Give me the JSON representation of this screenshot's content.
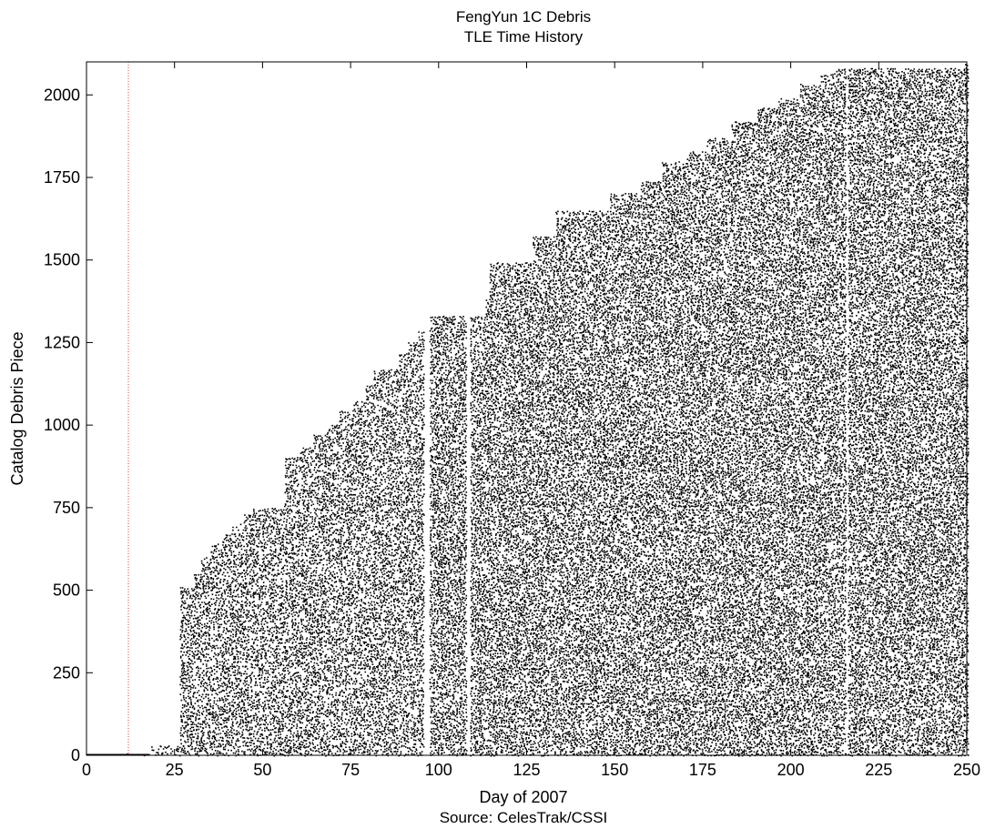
{
  "chart_data": {
    "type": "scatter",
    "title": "FengYun 1C Debris",
    "subtitle": "TLE Time History",
    "xlabel": "Day of 2007",
    "ylabel": "Catalog Debris Piece",
    "source": "Source: CelesTrak/CSSI",
    "xlim": [
      0,
      250
    ],
    "ylim": [
      0,
      2100
    ],
    "x_ticks": [
      0,
      25,
      50,
      75,
      100,
      125,
      150,
      175,
      200,
      225,
      250
    ],
    "y_ticks": [
      0,
      250,
      500,
      750,
      1000,
      1250,
      1500,
      1750,
      2000
    ],
    "grid": false,
    "event_marker": {
      "x": 11.9,
      "color": "#e04040",
      "style": "dotted"
    },
    "point_color": "#000000",
    "catalog_frontier": [
      {
        "day": 0,
        "pieces": 2
      },
      {
        "day": 18,
        "pieces": 30
      },
      {
        "day": 26,
        "pieces": 510
      },
      {
        "day": 30,
        "pieces": 550
      },
      {
        "day": 32,
        "pieces": 600
      },
      {
        "day": 35,
        "pieces": 640
      },
      {
        "day": 38,
        "pieces": 670
      },
      {
        "day": 41,
        "pieces": 700
      },
      {
        "day": 44,
        "pieces": 730
      },
      {
        "day": 47,
        "pieces": 750
      },
      {
        "day": 56,
        "pieces": 905
      },
      {
        "day": 60,
        "pieces": 935
      },
      {
        "day": 64,
        "pieces": 970
      },
      {
        "day": 68,
        "pieces": 1000
      },
      {
        "day": 71,
        "pieces": 1040
      },
      {
        "day": 75,
        "pieces": 1070
      },
      {
        "day": 79,
        "pieces": 1120
      },
      {
        "day": 81,
        "pieces": 1170
      },
      {
        "day": 88,
        "pieces": 1215
      },
      {
        "day": 91,
        "pieces": 1250
      },
      {
        "day": 94,
        "pieces": 1280
      },
      {
        "day": 96,
        "pieces": 1330
      },
      {
        "day": 113,
        "pieces": 1380
      },
      {
        "day": 114,
        "pieces": 1490
      },
      {
        "day": 126,
        "pieces": 1570
      },
      {
        "day": 133,
        "pieces": 1650
      },
      {
        "day": 148,
        "pieces": 1700
      },
      {
        "day": 157,
        "pieces": 1740
      },
      {
        "day": 163,
        "pieces": 1800
      },
      {
        "day": 170,
        "pieces": 1830
      },
      {
        "day": 176,
        "pieces": 1870
      },
      {
        "day": 183,
        "pieces": 1920
      },
      {
        "day": 190,
        "pieces": 1960
      },
      {
        "day": 196,
        "pieces": 1990
      },
      {
        "day": 202,
        "pieces": 2030
      },
      {
        "day": 208,
        "pieces": 2060
      },
      {
        "day": 212,
        "pieces": 2080
      },
      {
        "day": 249,
        "pieces": 2090
      }
    ],
    "gaps": [
      {
        "from_day": 95.2,
        "to_day": 96.8
      },
      {
        "from_day": 107.6,
        "to_day": 108.4
      },
      {
        "from_day": 215.4,
        "to_day": 216.1
      }
    ]
  }
}
